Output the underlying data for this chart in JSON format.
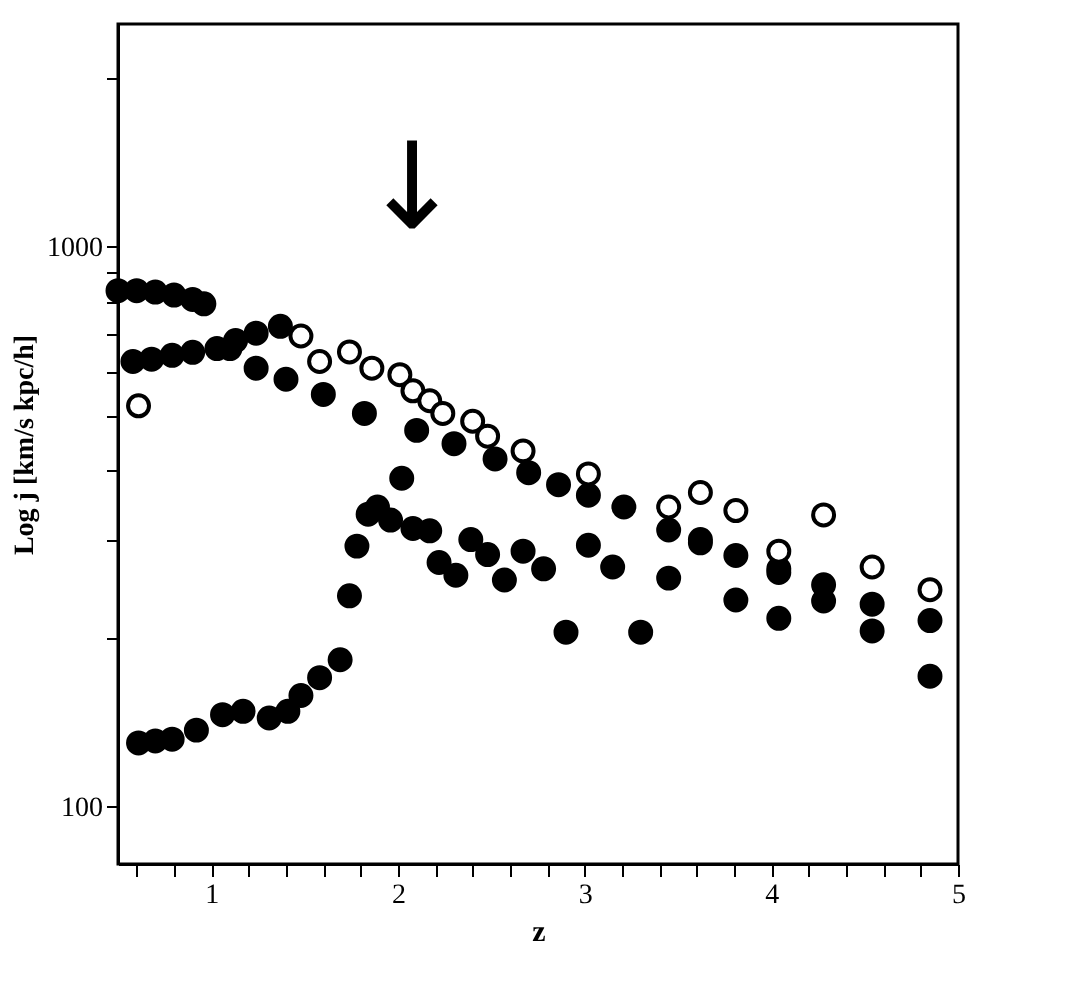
{
  "chart_data": {
    "type": "scatter",
    "xlabel": "z",
    "ylabel": "Log j [km/s kpc/h]",
    "log": "y",
    "marker": "circle",
    "grid": false,
    "legend": false,
    "xlim": [
      0.5,
      5.0
    ],
    "ylim": [
      79,
      2500
    ],
    "xticks": [
      {
        "value": 0.6,
        "label": null
      },
      {
        "value": 0.8,
        "label": null
      },
      {
        "value": 1,
        "label": "1"
      },
      {
        "value": 1.2,
        "label": null
      },
      {
        "value": 1.4,
        "label": null
      },
      {
        "value": 1.6,
        "label": null
      },
      {
        "value": 1.8,
        "label": null
      },
      {
        "value": 2,
        "label": "2"
      },
      {
        "value": 2.2,
        "label": null
      },
      {
        "value": 2.4,
        "label": null
      },
      {
        "value": 2.6,
        "label": null
      },
      {
        "value": 2.8,
        "label": null
      },
      {
        "value": 3,
        "label": "3"
      },
      {
        "value": 3.2,
        "label": null
      },
      {
        "value": 3.4,
        "label": null
      },
      {
        "value": 3.6,
        "label": null
      },
      {
        "value": 3.8,
        "label": null
      },
      {
        "value": 4,
        "label": "4"
      },
      {
        "value": 4.2,
        "label": null
      },
      {
        "value": 4.4,
        "label": null
      },
      {
        "value": 4.6,
        "label": null
      },
      {
        "value": 4.8,
        "label": null
      },
      {
        "value": 5,
        "label": "5"
      }
    ],
    "yticks": [
      100,
      {
        "value": 200,
        "label": null
      },
      {
        "value": 300,
        "label": null
      },
      {
        "value": 400,
        "label": null
      },
      {
        "value": 500,
        "label": null
      },
      {
        "value": 600,
        "label": null
      },
      {
        "value": 700,
        "label": null
      },
      {
        "value": 800,
        "label": null
      },
      {
        "value": 900,
        "label": null
      },
      1000,
      {
        "value": 2000,
        "label": null
      }
    ],
    "annotations": [
      "↓"
    ],
    "series": [
      {
        "color": "#000000",
        "x": [
          0.5,
          0.6,
          0.7,
          0.8,
          0.9,
          0.96,
          1.1,
          1.24,
          1.4,
          1.6,
          1.82,
          2.1,
          2.3,
          2.52,
          2.7,
          2.86,
          3.02,
          3.21,
          3.45,
          3.62,
          3.81,
          4.04,
          4.28,
          4.54,
          4.85,
          0.58,
          0.68,
          0.79,
          0.9,
          1.03,
          1.13,
          1.24,
          1.37,
          0.61,
          0.7,
          0.79,
          0.92,
          1.06,
          1.17,
          1.31,
          1.41,
          1.48,
          1.58,
          1.69,
          1.74,
          1.78,
          1.84,
          1.89,
          1.96,
          2.02,
          2.08,
          2.17,
          2.22,
          2.31,
          2.39,
          2.48,
          2.57,
          2.67,
          2.78,
          2.9,
          3.02,
          3.15,
          3.3,
          3.45,
          3.62,
          3.81,
          4.04,
          4.04,
          4.28,
          4.54,
          4.85
        ],
        "values": [
          835,
          835,
          830,
          820,
          805,
          791,
          658,
          607,
          580,
          545,
          504,
          470,
          445,
          418,
          395,
          376,
          360,
          343,
          312,
          300,
          281,
          262,
          249,
          230,
          215,
          624,
          630,
          640,
          648,
          658,
          680,
          701,
          721,
          130,
          131,
          132,
          137,
          146,
          148,
          144,
          148,
          158,
          170,
          183,
          238,
          292,
          333,
          343,
          325,
          386,
          314,
          311,
          273,
          259,
          300,
          282,
          254,
          286,
          266,
          205,
          293,
          268,
          205,
          256,
          296,
          234,
          217,
          266,
          233,
          206,
          171
        ]
      },
      {
        "color": "#000000",
        "x": [
          0.61,
          1.48,
          1.58,
          1.74,
          1.86,
          2.01,
          2.08,
          2.17,
          2.24,
          2.4,
          2.48,
          2.67,
          3.02,
          3.45,
          3.62,
          3.81,
          4.04,
          4.28,
          4.54,
          4.85
        ],
        "values": [
          520,
          693,
          624,
          649,
          607,
          591,
          553,
          531,
          504,
          488,
          459,
          432,
          393,
          343,
          364,
          338,
          286,
          332,
          268,
          244
        ]
      }
    ]
  }
}
